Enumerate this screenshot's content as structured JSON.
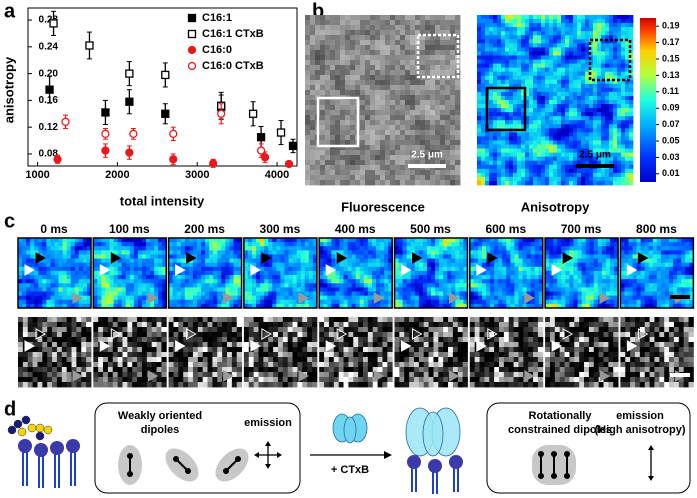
{
  "panel_labels": [
    "a",
    "b",
    "c",
    "d"
  ],
  "chart_data": {
    "type": "scatter",
    "xlabel": "total intensity",
    "ylabel": "anisotropy",
    "xlim": [
      880,
      4250
    ],
    "ylim": [
      0.062,
      0.298
    ],
    "xticks": [
      1000,
      2000,
      3000,
      4000
    ],
    "yticks": [
      0.08,
      0.12,
      0.16,
      {
        "value": 0.2,
        "label": "0.20"
      },
      0.24,
      0.28
    ],
    "legend": "upper right",
    "series": [
      {
        "name": "C16:1",
        "color": "#000000",
        "marker": "square",
        "filled": true,
        "x": [
          1150,
          1850,
          2150,
          2600,
          3300,
          3800,
          4200
        ],
        "values": [
          0.176,
          0.142,
          0.158,
          0.14,
          0.15,
          0.105,
          0.092
        ],
        "errors": [
          0.02,
          0.018,
          0.018,
          0.015,
          0.018,
          0.016,
          0.01
        ]
      },
      {
        "name": "C16:1 CTxB",
        "color": "#000000",
        "marker": "square",
        "filled": false,
        "x": [
          1200,
          1650,
          2150,
          2600,
          3300,
          3700,
          4050
        ],
        "values": [
          0.275,
          0.242,
          0.2,
          0.198,
          0.152,
          0.14,
          0.112
        ],
        "errors": [
          0.018,
          0.02,
          0.018,
          0.018,
          0.02,
          0.018,
          0.018
        ]
      },
      {
        "name": "C16:0",
        "color": "#e8191c",
        "marker": "circle",
        "filled": true,
        "x": [
          1250,
          1850,
          2150,
          2700,
          3200,
          3850,
          4150
        ],
        "values": [
          0.072,
          0.085,
          0.082,
          0.072,
          0.066,
          0.075,
          0.065
        ],
        "errors": [
          0.006,
          0.01,
          0.01,
          0.008,
          0.006,
          0.008,
          0.004
        ]
      },
      {
        "name": "C16:0 CTxB",
        "color": "#e8191c",
        "marker": "circle",
        "filled": false,
        "x": [
          1350,
          1850,
          2200,
          2700,
          3300,
          3800
        ],
        "values": [
          0.128,
          0.11,
          0.11,
          0.11,
          0.14,
          0.085
        ],
        "errors": [
          0.01,
          0.008,
          0.008,
          0.01,
          0.015,
          0.01
        ]
      }
    ]
  },
  "panel_b": {
    "fluorescence_label": "Fluorescence",
    "anisotropy_label": "Anisotropy",
    "scale_bar_fluorescence": "2.5 μm",
    "scale_bar_anisotropy": "2.5 μm",
    "colorbar_lim": [
      0,
      0.2
    ],
    "colorbar_ticks": [
      0.19,
      0.17,
      0.15,
      0.13,
      0.11,
      0.09,
      0.07,
      0.05,
      0.03,
      0.01
    ]
  },
  "panel_c": {
    "times": [
      "0 ms",
      "100 ms",
      "200 ms",
      "300 ms",
      "400 ms",
      "500 ms",
      "600 ms",
      "700 ms",
      "800 ms"
    ]
  },
  "panel_d": {
    "left_title": [
      "Weakly oriented",
      "dipoles"
    ],
    "left_emission": "emission",
    "arrow_label": "+ CTxB",
    "right_title": [
      "Rotationally",
      "constrained dipoles"
    ],
    "right_emission": [
      "emission",
      "(High anisotropy)"
    ]
  }
}
